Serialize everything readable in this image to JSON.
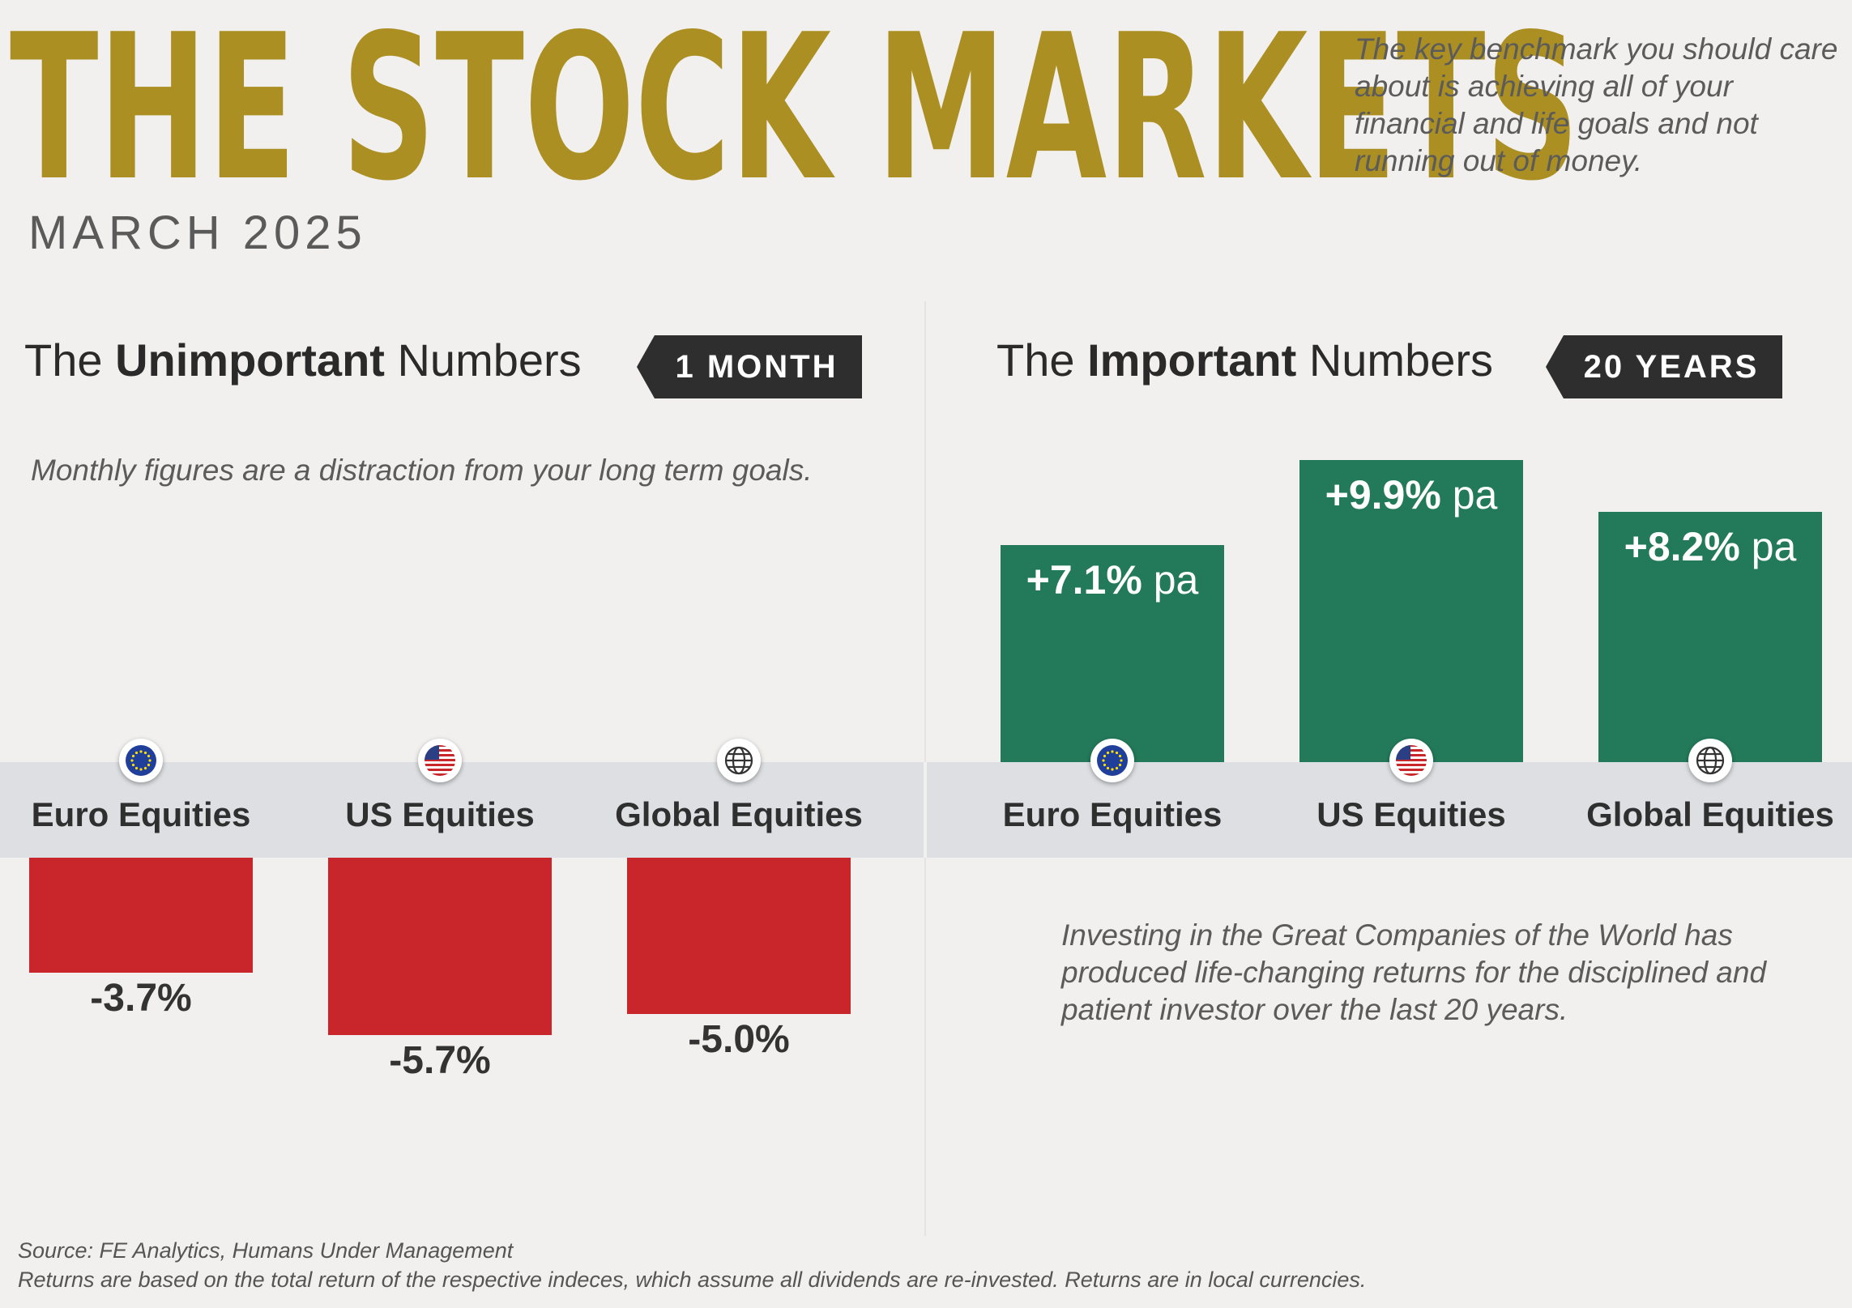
{
  "header": {
    "title": "THE STOCK MARKETS",
    "subtitle": "MARCH 2025",
    "intro": "The key benchmark you should care about is achieving all of your financial and life goals and not running out of money."
  },
  "left_panel": {
    "title_pre": "The",
    "title_bold": "Unimportant",
    "title_post": "Numbers",
    "badge": "1 MONTH",
    "note": "Monthly figures are a distraction from your long term goals."
  },
  "right_panel": {
    "title_pre": "The",
    "title_bold": "Important",
    "title_post": "Numbers",
    "badge": "20 YEARS",
    "note": "Investing in the Great Companies of the World has produced life-changing returns for the disciplined and patient investor over the last 20 years."
  },
  "icons": [
    "eu-flag-icon",
    "us-flag-icon",
    "globe-icon"
  ],
  "colors": {
    "title": "#ac8f22",
    "negative": "#c8262a",
    "positive": "#237a5a",
    "badge": "#2e2e2e"
  },
  "footer": {
    "source": "Source: FE Analytics, Humans Under Management",
    "disclaimer": "Returns are based on the total return of the respective indeces, which assume all dividends are re-invested. Returns are in local currencies."
  },
  "chart_data": [
    {
      "type": "bar",
      "categories": [
        "Euro Equities",
        "US Equities",
        "Global Equities"
      ],
      "values": [
        -3.7,
        -5.7,
        -5.0
      ],
      "labels": [
        "-3.7%",
        "-5.7%",
        "-5.0%"
      ]
    },
    {
      "type": "bar",
      "categories": [
        "Euro Equities",
        "US Equities",
        "Global Equities"
      ],
      "values": [
        7.1,
        9.9,
        8.2
      ],
      "labels": [
        "+7.1%",
        "+9.9%",
        "+8.2%"
      ],
      "unit_suffix": "pa"
    }
  ]
}
